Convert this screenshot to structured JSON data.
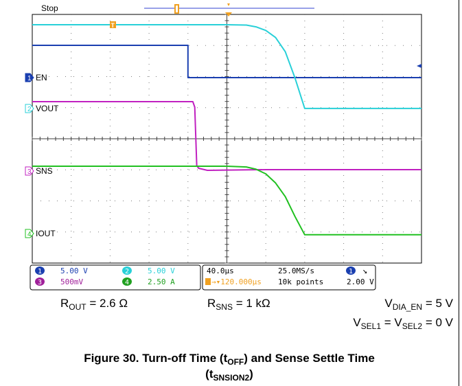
{
  "chart_data": {
    "type": "line",
    "title": "",
    "status": "Stop",
    "xlabel": "",
    "ylabel": "",
    "grid": true,
    "grid_divisions": {
      "x": 10,
      "y": 8
    },
    "x_unit": "µs",
    "x": [
      -200,
      -80,
      -40,
      -35,
      -20,
      0,
      10,
      20,
      30,
      40,
      45,
      60,
      100,
      400
    ],
    "series": [
      {
        "name": "EN",
        "channel": "1",
        "color": "#1a3fb0",
        "values": [
          5.0,
          5.0,
          5.0,
          0.0,
          0.0,
          0.0,
          0.0,
          0.0,
          0.0,
          0.0,
          0.0,
          0.0,
          0.0,
          0.0
        ]
      },
      {
        "name": "VOUT",
        "channel": "2",
        "color": "#28d0d8",
        "values": [
          12.0,
          12.0,
          12.0,
          12.0,
          12.0,
          12.0,
          11.7,
          10.5,
          7.5,
          1.2,
          0.2,
          0.2,
          0.2,
          0.2
        ]
      },
      {
        "name": "SNS",
        "channel": "3",
        "color": "#c020c0",
        "values": [
          2.0,
          2.0,
          2.0,
          2.0,
          2.0,
          2.0,
          2.0,
          2.0,
          2.0,
          2.0,
          2.0,
          2.0,
          2.0,
          2.0
        ]
      },
      {
        "name": "IOUT",
        "channel": "4",
        "color": "#20c020",
        "values": [
          4.6,
          4.6,
          4.6,
          4.6,
          4.6,
          4.6,
          4.5,
          4.0,
          2.8,
          0.5,
          0.1,
          0.1,
          0.1,
          0.1
        ]
      }
    ],
    "channel_settings": [
      {
        "channel": "1",
        "scale": "5.00 V",
        "color": "#1a3fb0"
      },
      {
        "channel": "2",
        "scale": "5.00 V",
        "color": "#28d0d8"
      },
      {
        "channel": "3",
        "scale": "500mV",
        "color": "#a0209a"
      },
      {
        "channel": "4",
        "scale": "2.50 A",
        "color": "#20a020"
      }
    ],
    "timebase": "40.0µs",
    "sample_rate": "25.0MS/s",
    "trigger_position": "120.000µs",
    "record_length": "10k points",
    "trigger_channel": "1",
    "trigger_symbol": "↘",
    "trigger_level": "2.00 V"
  },
  "conditions": {
    "rout": "R<sub>OUT</sub> = 2.6 Ω",
    "rsns": "R<sub>SNS</sub> = 1 kΩ",
    "vdia": "V<sub>DIA_EN</sub> = 5 V",
    "vsel": "V<sub>SEL1</sub> = V<sub>SEL2</sub> = 0 V"
  },
  "caption": {
    "line1": "Figure 30. Turn-off Time (t<sub>OFF</sub>) and Sense Settle Time",
    "line2": "(t<sub>SNSION2</sub>)"
  },
  "colors": {
    "grid_border": "#000000",
    "grid_dots": "#7a7a7a",
    "ch1_marker": "#1a3fb0",
    "ch2_marker": "#28d0d8",
    "ch3_marker": "#c020c0",
    "ch4_marker": "#20c020",
    "trigger_marker": "#f0a020",
    "record_bar": "#3040d0"
  }
}
